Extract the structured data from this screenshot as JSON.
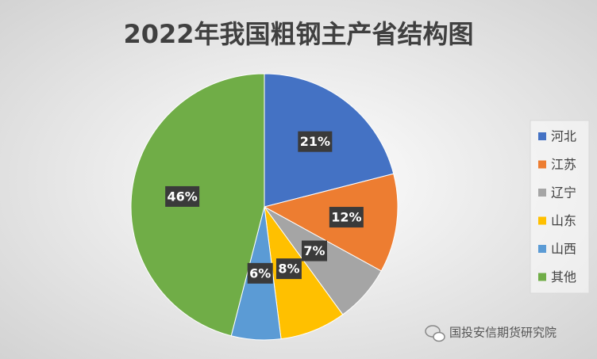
{
  "chart_data": {
    "type": "pie",
    "title": "2022年我国粗钢主产省结构图",
    "categories": [
      "河北",
      "江苏",
      "辽宁",
      "山东",
      "山西",
      "其他"
    ],
    "values": [
      21,
      12,
      7,
      8,
      6,
      46
    ],
    "value_labels": [
      "21%",
      "12%",
      "7%",
      "8%",
      "6%",
      "46%"
    ],
    "colors": [
      "#4472c4",
      "#ed7d31",
      "#a5a5a5",
      "#ffc000",
      "#5b9bd5",
      "#70ad47"
    ],
    "legend": "right",
    "watermark": "国投安信期货研究院"
  }
}
